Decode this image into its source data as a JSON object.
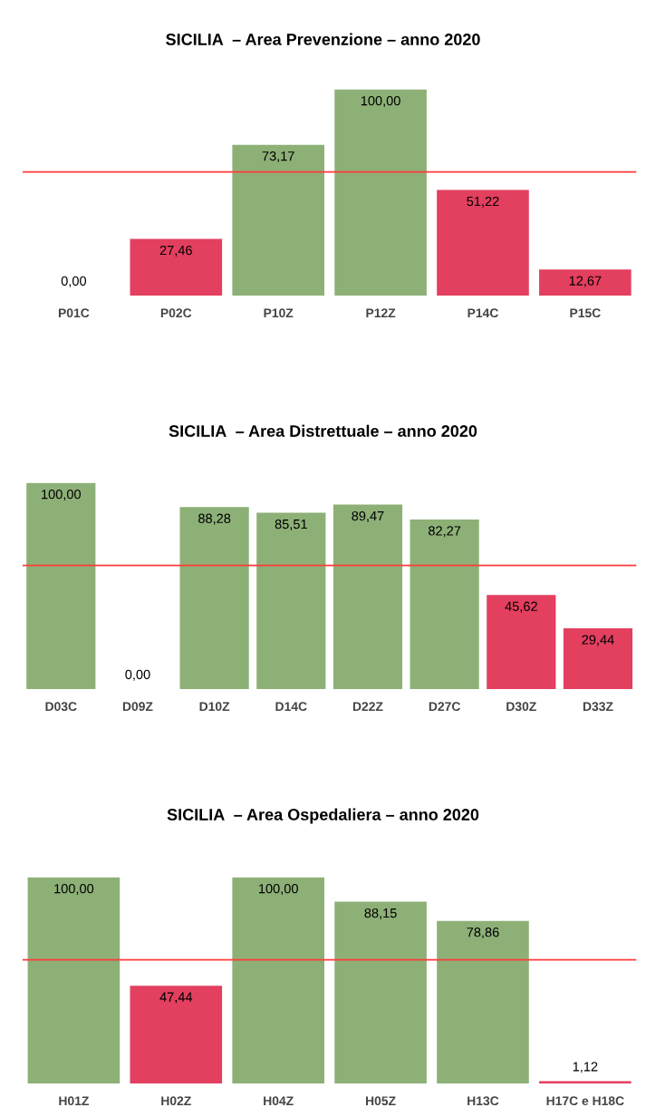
{
  "chart_data": [
    {
      "type": "bar",
      "title": "SICILIA  – Area Prevenzione – anno 2020",
      "categories": [
        "P01C",
        "P02C",
        "P10Z",
        "P12Z",
        "P14C",
        "P15C"
      ],
      "values": [
        0,
        27.46,
        73.17,
        100,
        51.22,
        12.67
      ],
      "value_labels": [
        "0,00",
        "27,46",
        "73,17",
        "100,00",
        "51,22",
        "12,67"
      ],
      "colors": [
        "#e33f5f",
        "#e33f5f",
        "#8db077",
        "#8db077",
        "#e33f5f",
        "#e33f5f"
      ],
      "tick_labels": "x",
      "grid": false,
      "ref_lines": [
        {
          "axis": "y",
          "value": 60,
          "label": null,
          "color": "#ff3b3b"
        }
      ]
    },
    {
      "type": "bar",
      "title": "SICILIA  – Area Distrettuale – anno 2020",
      "categories": [
        "D03C",
        "D09Z",
        "D10Z",
        "D14C",
        "D22Z",
        "D27C",
        "D30Z",
        "D33Z"
      ],
      "values": [
        100,
        0,
        88.28,
        85.51,
        89.47,
        82.27,
        45.62,
        29.44
      ],
      "value_labels": [
        "100,00",
        "0,00",
        "88,28",
        "85,51",
        "89,47",
        "82,27",
        "45,62",
        "29,44"
      ],
      "colors": [
        "#8db077",
        "#e33f5f",
        "#8db077",
        "#8db077",
        "#8db077",
        "#8db077",
        "#e33f5f",
        "#e33f5f"
      ],
      "tick_labels": "x",
      "grid": false,
      "ref_lines": [
        {
          "axis": "y",
          "value": 60,
          "label": null,
          "color": "#ff3b3b"
        }
      ]
    },
    {
      "type": "bar",
      "title": "SICILIA  – Area Ospedaliera – anno 2020",
      "categories": [
        "H01Z",
        "H02Z",
        "H04Z",
        "H05Z",
        "H13C",
        "H17C e H18C"
      ],
      "values": [
        100,
        47.44,
        100,
        88.15,
        78.86,
        1.12
      ],
      "value_labels": [
        "100,00",
        "47,44",
        "100,00",
        "88,15",
        "78,86",
        "1,12"
      ],
      "colors": [
        "#8db077",
        "#e33f5f",
        "#8db077",
        "#8db077",
        "#8db077",
        "#e33f5f"
      ],
      "tick_labels": "x",
      "grid": false,
      "ref_lines": [
        {
          "axis": "y",
          "value": 60,
          "label": null,
          "color": "#ff3b3b"
        }
      ]
    }
  ]
}
